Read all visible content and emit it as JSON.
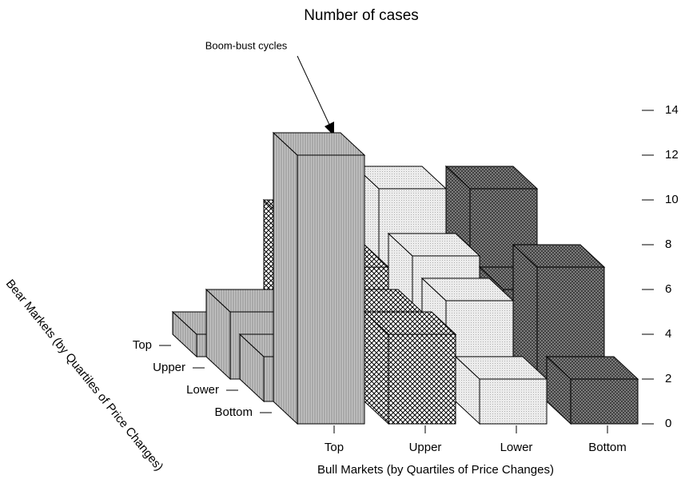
{
  "chart_data": {
    "type": "bar3d",
    "title": "Number of cases",
    "annotation": "Boom-bust cycles",
    "x_label": "Bull Markets (by Quartiles of Price Changes)",
    "depth_label": "Bear Markets (by Quartiles of Price Changes)",
    "categories": [
      "Top",
      "Upper",
      "Lower",
      "Bottom"
    ],
    "colors": [
      "#c4c4c4",
      "#ffffff",
      "#ececec",
      "#8a8a8a"
    ],
    "series": [
      {
        "name": "Top",
        "values": [
          1,
          6,
          7.5,
          7.5
        ]
      },
      {
        "name": "Upper",
        "values": [
          3,
          5,
          5.5,
          4
        ]
      },
      {
        "name": "Lower",
        "values": [
          2,
          4,
          4.5,
          6
        ]
      },
      {
        "name": "Bottom",
        "values": [
          12,
          4,
          2,
          2
        ]
      }
    ],
    "zlim": [
      0,
      14
    ],
    "zticks": [
      0,
      2,
      4,
      6,
      8,
      10,
      12,
      14
    ]
  }
}
